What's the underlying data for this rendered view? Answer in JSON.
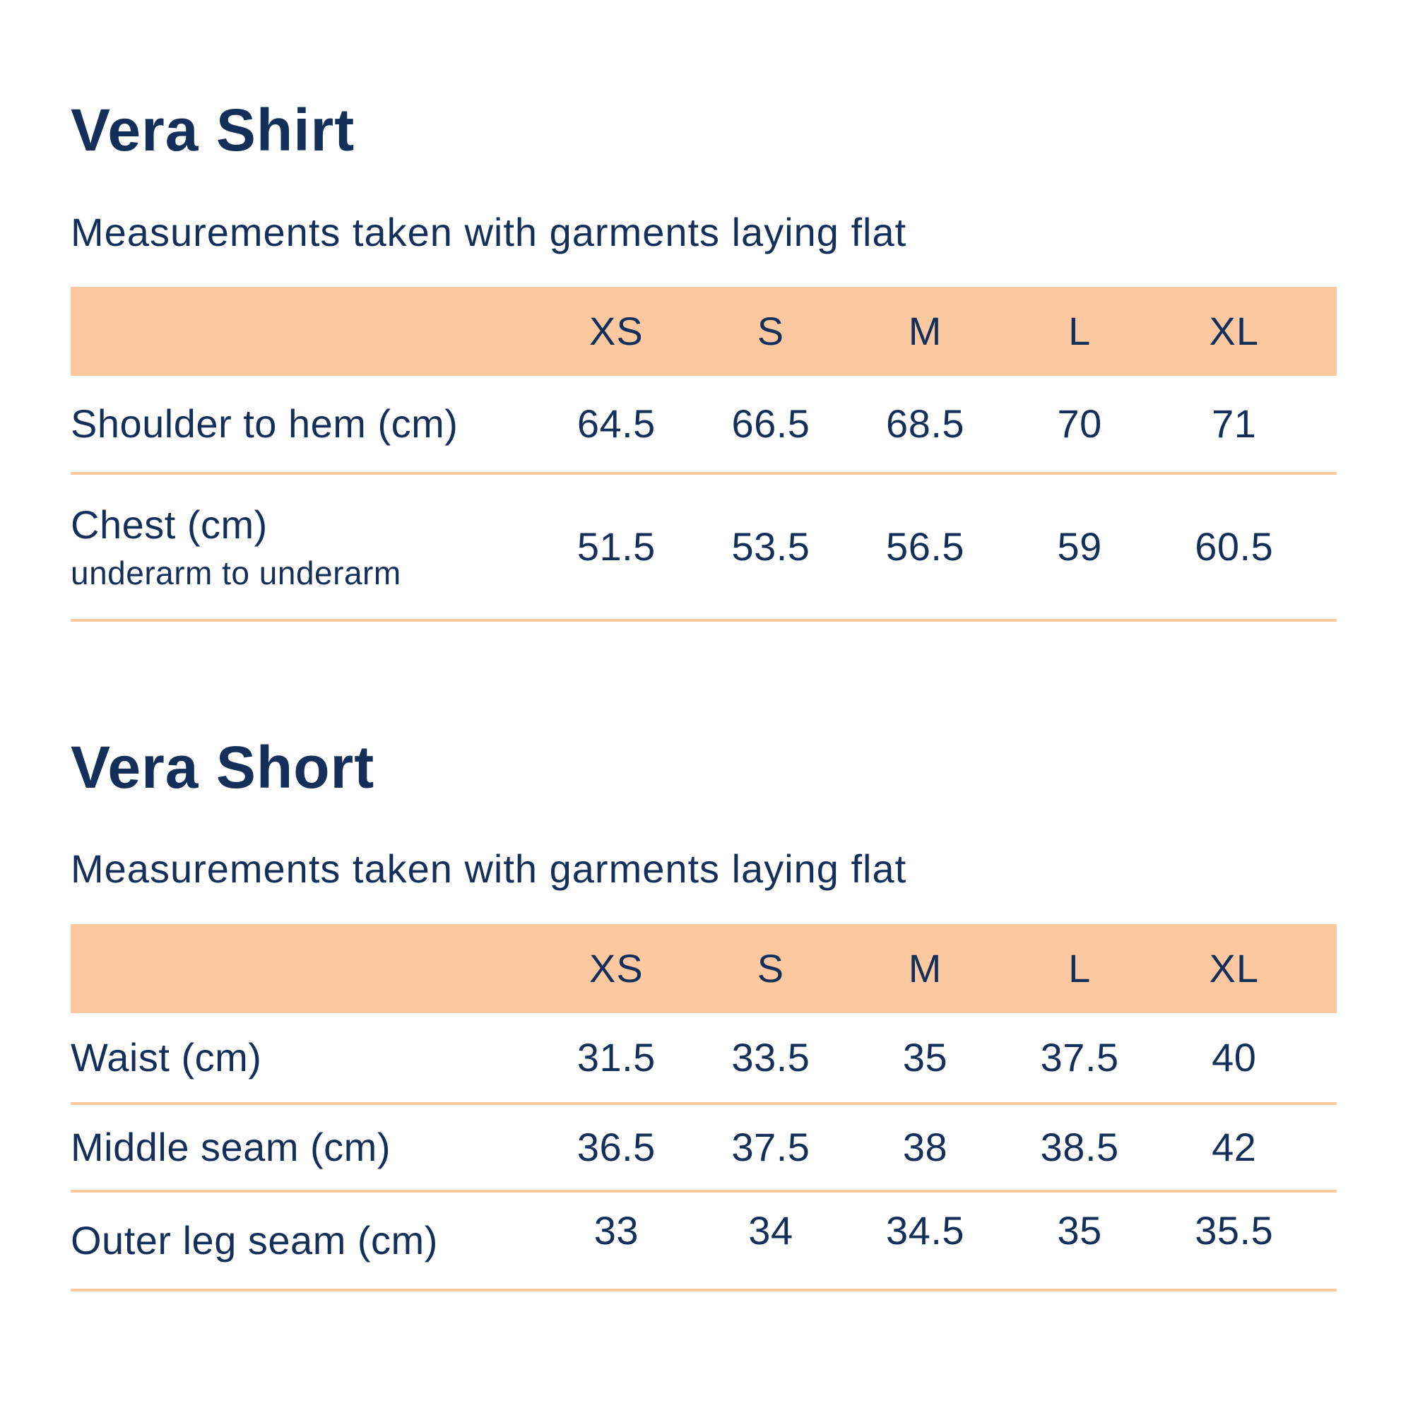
{
  "colors": {
    "navy": "#14305A",
    "peach": "#FCC89F",
    "bg": "#FFFFFF"
  },
  "chart_data": [
    {
      "type": "table",
      "title": "Vera Shirt",
      "subtitle": "Measurements taken with garments laying flat",
      "columns": [
        "XS",
        "S",
        "M",
        "L",
        "XL"
      ],
      "rows": [
        {
          "label": "Shoulder to hem (cm)",
          "values": [
            "64.5",
            "66.5",
            "68.5",
            "70",
            "71"
          ]
        },
        {
          "label": "Chest (cm)",
          "sublabel": "underarm to underarm",
          "values": [
            "51.5",
            "53.5",
            "56.5",
            "59",
            "60.5"
          ]
        }
      ]
    },
    {
      "type": "table",
      "title": "Vera Short",
      "subtitle": "Measurements taken with garments laying flat",
      "columns": [
        "XS",
        "S",
        "M",
        "L",
        "XL"
      ],
      "rows": [
        {
          "label": "Waist (cm)",
          "values": [
            "31.5",
            "33.5",
            "35",
            "37.5",
            "40"
          ]
        },
        {
          "label": "Middle seam (cm)",
          "values": [
            "36.5",
            "37.5",
            "38",
            "38.5",
            "42"
          ]
        },
        {
          "label": "Outer leg seam (cm)",
          "values": [
            "33",
            "34",
            "34.5",
            "35",
            "35.5"
          ]
        }
      ]
    }
  ]
}
